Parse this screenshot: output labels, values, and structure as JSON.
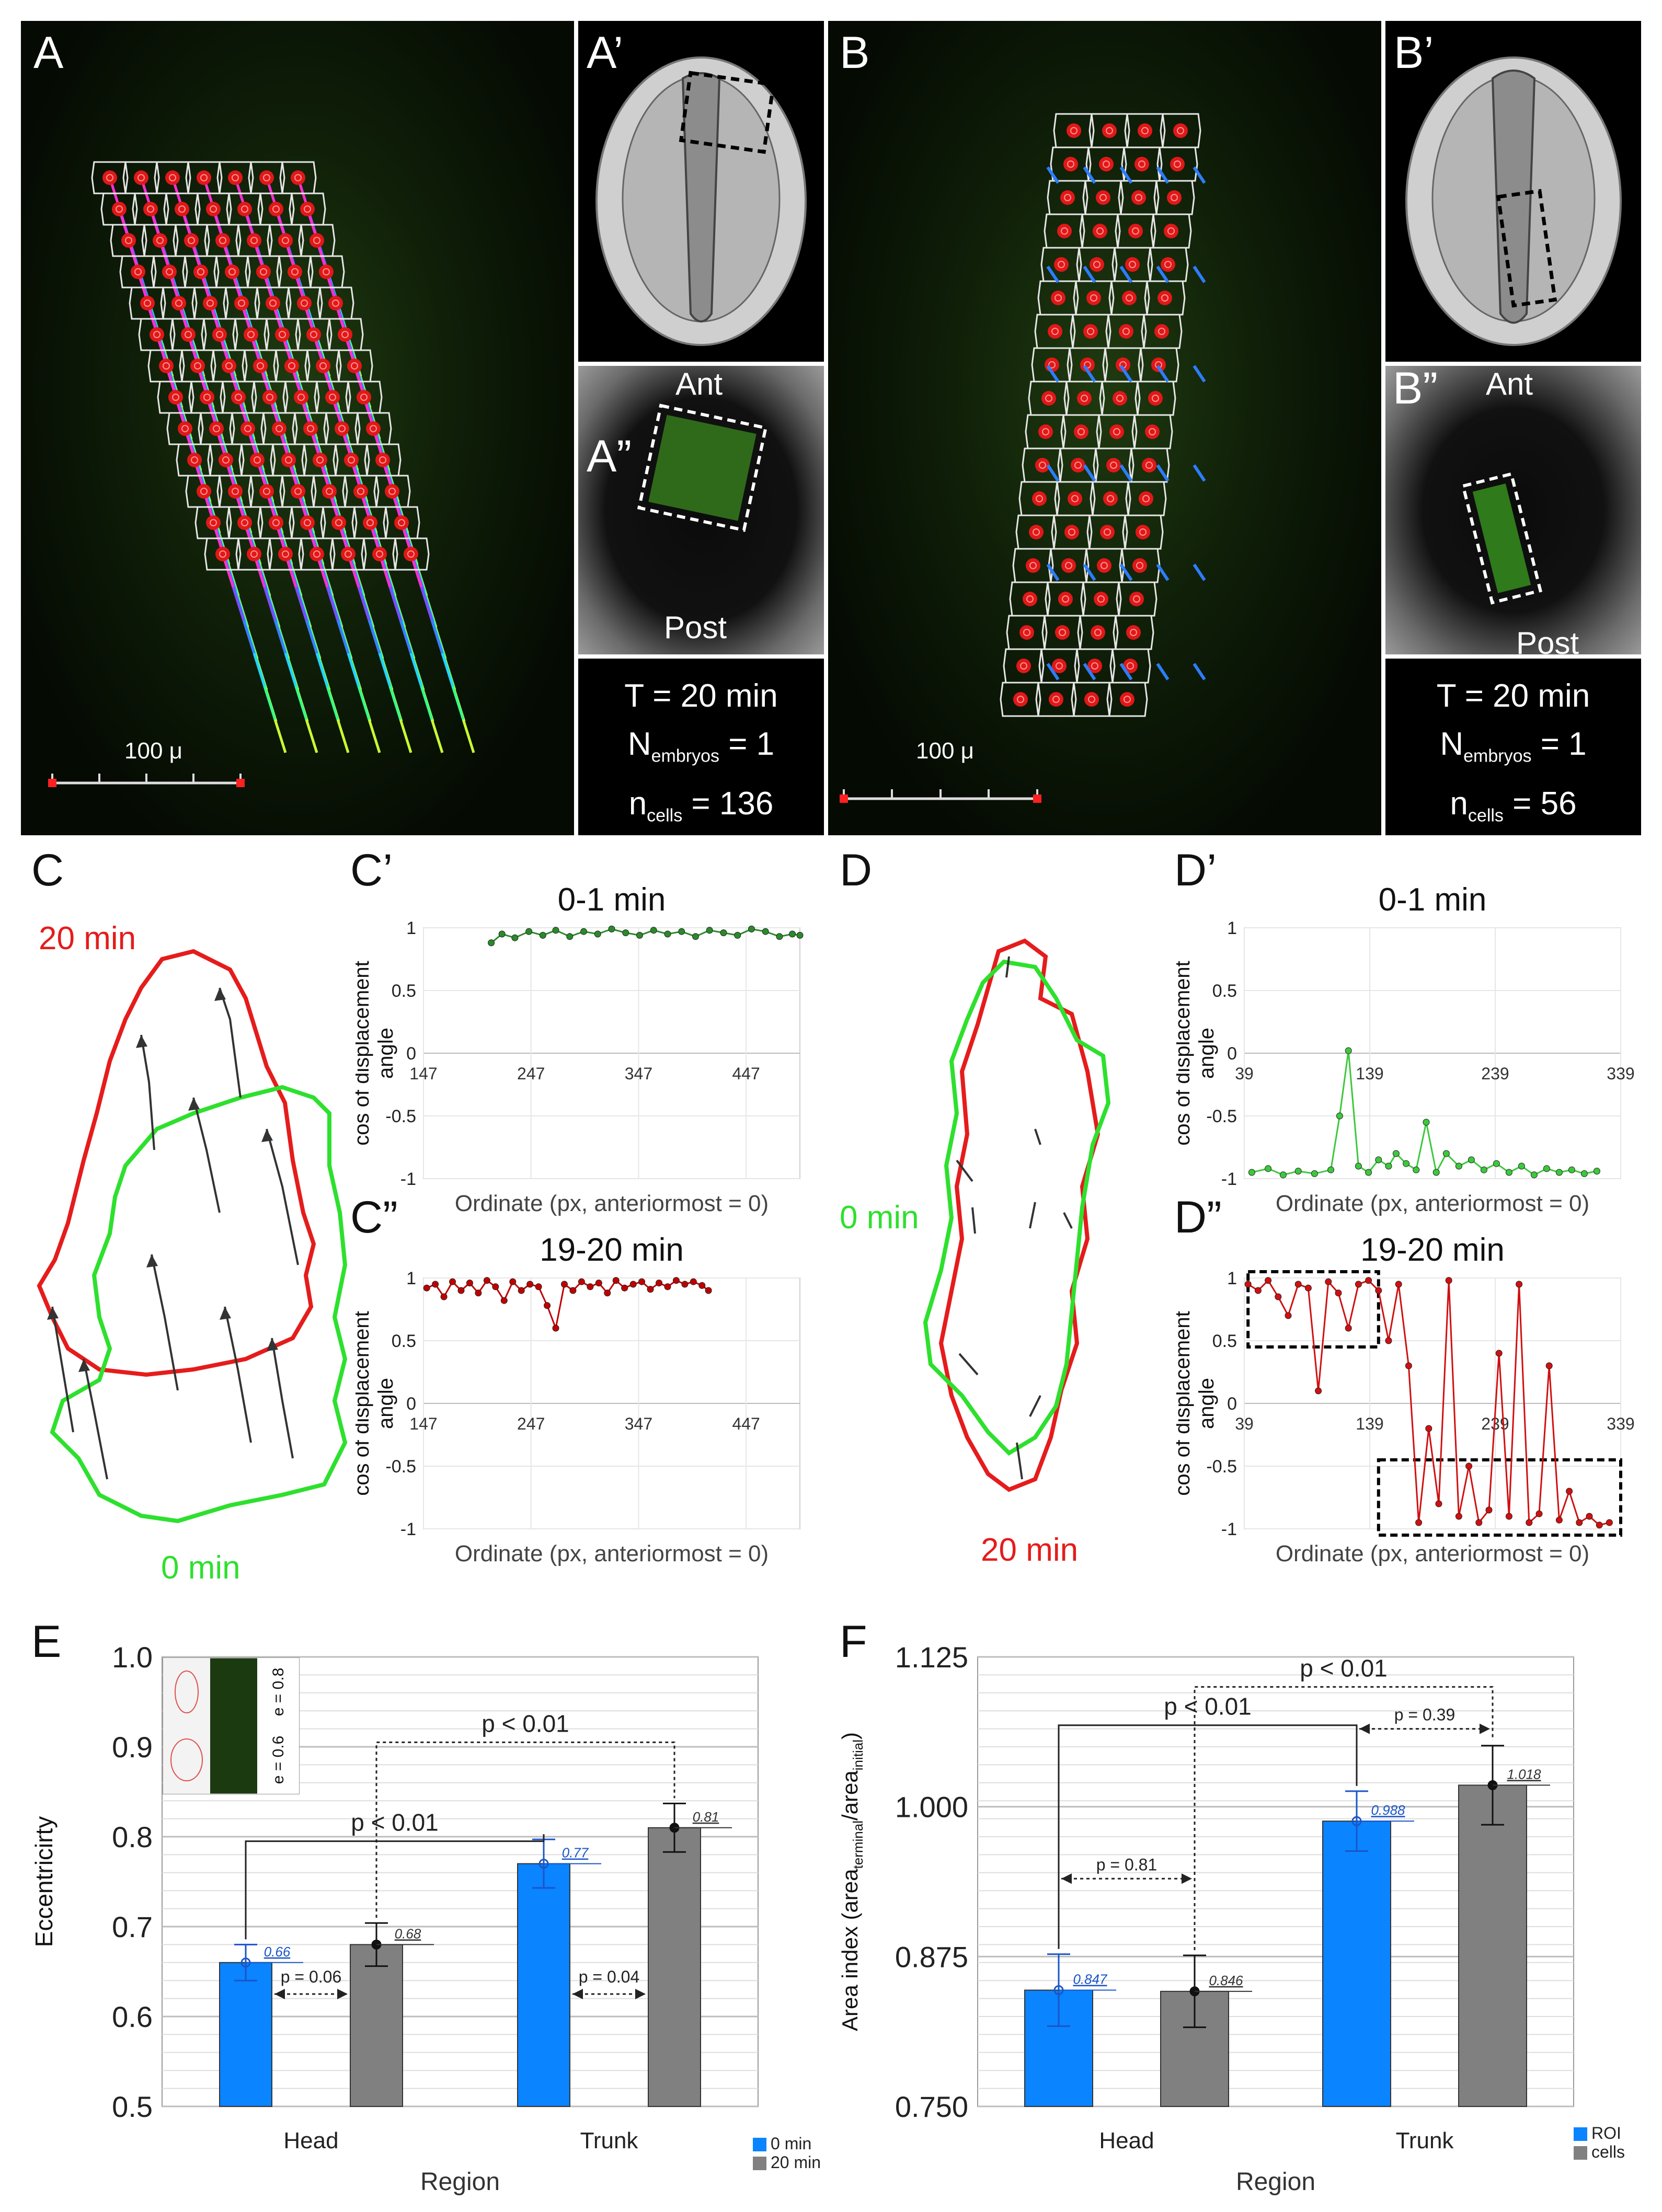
{
  "panels": {
    "A": {
      "letter": "A",
      "scalebar": "100 μ"
    },
    "A1": {
      "letter": "A’"
    },
    "A2": {
      "letter": "A”",
      "ant": "Ant",
      "post": "Post"
    },
    "Ainfo": {
      "time": "T = 20 min",
      "n_label": "N",
      "n_sub": "embryos",
      "n_val": " = 1",
      "c_label": "n",
      "c_sub": "cells",
      "c_val": " = 136"
    },
    "B": {
      "letter": "B",
      "scalebar": "100 μ"
    },
    "B1": {
      "letter": "B’"
    },
    "B2": {
      "letter": "B”",
      "ant": "Ant",
      "post": "Post"
    },
    "Binfo": {
      "time": "T = 20 min",
      "n_label": "N",
      "n_sub": "embryos",
      "n_val": " = 1",
      "c_label": "n",
      "c_sub": "cells",
      "c_val": " = 56"
    },
    "C": {
      "letter": "C",
      "t20": "20 min",
      "t0": "0 min",
      "color_20": "#e51c1c",
      "color_0": "#2ee02e"
    },
    "D": {
      "letter": "D",
      "t20": "20 min",
      "t0": "0 min"
    },
    "E": {
      "letter": "E"
    },
    "F": {
      "letter": "F"
    }
  },
  "chart_data": [
    {
      "id": "C1",
      "letter": "C’",
      "type": "scatter",
      "title": "0-1 min",
      "ylabel": "cos of displacement angle",
      "xlabel": "Ordinate (px, anteriormost = 0)",
      "xticks": [
        "147",
        "247",
        "347",
        "447"
      ],
      "yticks": [
        "1",
        "0.5",
        "0",
        "-0.5",
        "-1"
      ],
      "xlim": [
        147,
        497
      ],
      "ylim": [
        -1,
        1
      ],
      "color": "#2a8a2a",
      "series": [
        {
          "values_desc": "~0.92-1.0 for ordinate 210-497",
          "x": [
            210,
            220,
            232,
            245,
            258,
            270,
            283,
            296,
            309,
            322,
            335,
            348,
            361,
            374,
            387,
            400,
            413,
            426,
            439,
            452,
            465,
            478,
            490,
            497
          ],
          "y": [
            0.88,
            0.95,
            0.92,
            0.97,
            0.94,
            0.98,
            0.93,
            0.97,
            0.95,
            0.99,
            0.96,
            0.94,
            0.98,
            0.95,
            0.97,
            0.93,
            0.98,
            0.96,
            0.94,
            0.99,
            0.97,
            0.93,
            0.95,
            0.94
          ]
        }
      ]
    },
    {
      "id": "C2",
      "letter": "C”",
      "type": "scatter",
      "title": "19-20 min",
      "ylabel": "cos of displacement angle",
      "xlabel": "Ordinate (px, anteriormost = 0)",
      "xticks": [
        "147",
        "247",
        "347",
        "447"
      ],
      "yticks": [
        "1",
        "0.5",
        "0",
        "-0.5",
        "-1"
      ],
      "xlim": [
        147,
        497
      ],
      "ylim": [
        -1,
        1
      ],
      "color": "#c00000",
      "series": [
        {
          "x": [
            150,
            158,
            166,
            174,
            182,
            190,
            198,
            206,
            214,
            222,
            230,
            238,
            246,
            254,
            262,
            270,
            278,
            286,
            294,
            302,
            310,
            318,
            326,
            334,
            342,
            350,
            358,
            366,
            374,
            382,
            390,
            398,
            406,
            412
          ],
          "y": [
            0.92,
            0.95,
            0.85,
            0.97,
            0.9,
            0.96,
            0.88,
            0.98,
            0.93,
            0.82,
            0.97,
            0.9,
            0.95,
            0.93,
            0.78,
            0.6,
            0.95,
            0.9,
            0.97,
            0.93,
            0.96,
            0.88,
            0.98,
            0.92,
            0.95,
            0.97,
            0.91,
            0.96,
            0.93,
            0.98,
            0.95,
            0.97,
            0.94,
            0.9
          ]
        }
      ]
    },
    {
      "id": "D1",
      "letter": "D’",
      "type": "line",
      "title": "0-1 min",
      "ylabel": "cos of displacement angle",
      "xlabel": "Ordinate (px, anteriormost = 0)",
      "xticks": [
        "39",
        "139",
        "239",
        "339"
      ],
      "yticks": [
        "1",
        "0.5",
        "0",
        "-0.5",
        "-1"
      ],
      "xlim": [
        39,
        339
      ],
      "ylim": [
        -1,
        1
      ],
      "color": "#3cc83c",
      "series": [
        {
          "x": [
            45,
            58,
            70,
            82,
            95,
            108,
            115,
            122,
            130,
            138,
            146,
            154,
            160,
            168,
            176,
            184,
            192,
            200,
            210,
            220,
            230,
            240,
            250,
            260,
            270,
            280,
            290,
            300,
            310,
            320
          ],
          "y": [
            -0.95,
            -0.92,
            -0.97,
            -0.94,
            -0.96,
            -0.93,
            -0.5,
            0.02,
            -0.9,
            -0.95,
            -0.85,
            -0.9,
            -0.8,
            -0.88,
            -0.93,
            -0.55,
            -0.95,
            -0.8,
            -0.9,
            -0.85,
            -0.93,
            -0.88,
            -0.95,
            -0.9,
            -0.97,
            -0.92,
            -0.95,
            -0.93,
            -0.96,
            -0.94
          ]
        }
      ]
    },
    {
      "id": "D2",
      "letter": "D”",
      "type": "line",
      "title": "19-20 min",
      "ylabel": "cos of displacement angle",
      "xlabel": "Ordinate (px, anteriormost = 0)",
      "xticks": [
        "39",
        "139",
        "239",
        "339"
      ],
      "yticks": [
        "1",
        "0.5",
        "0",
        "-0.5",
        "-1"
      ],
      "xlim": [
        39,
        339
      ],
      "ylim": [
        -1,
        1
      ],
      "color": "#d01010",
      "series": [
        {
          "x": [
            42,
            50,
            58,
            66,
            74,
            82,
            90,
            98,
            106,
            114,
            122,
            130,
            138,
            146,
            154,
            162,
            170,
            178,
            186,
            194,
            202,
            210,
            218,
            226,
            234,
            242,
            250,
            258,
            266,
            274,
            282,
            290,
            298,
            306,
            314,
            322,
            330
          ],
          "y": [
            0.95,
            0.9,
            0.98,
            0.85,
            0.7,
            0.95,
            0.92,
            0.1,
            0.97,
            0.88,
            0.6,
            0.95,
            0.98,
            0.9,
            0.5,
            0.95,
            0.3,
            -0.95,
            -0.2,
            -0.8,
            0.98,
            -0.9,
            -0.5,
            -0.95,
            -0.85,
            0.4,
            -0.9,
            0.95,
            -0.95,
            -0.88,
            0.3,
            -0.93,
            -0.7,
            -0.95,
            -0.9,
            -0.97,
            -0.95
          ]
        }
      ],
      "boxes": [
        {
          "x": [
            42,
            146
          ],
          "y": [
            0.45,
            1.05
          ]
        },
        {
          "x": [
            146,
            339
          ],
          "y": [
            -1.05,
            -0.45
          ]
        }
      ]
    },
    {
      "id": "E",
      "type": "bar",
      "ylabel": "Eccentricirty",
      "xlabel": "Region",
      "categories": [
        "Head",
        "Trunk"
      ],
      "ylim": [
        0.5,
        1.0
      ],
      "yticks": [
        "0.5",
        "0.6",
        "0.7",
        "0.8",
        "0.9",
        "1.0"
      ],
      "series": [
        {
          "name": "0 min",
          "values": [
            0.66,
            0.77
          ],
          "err": [
            0.02,
            0.027
          ],
          "color": "#0a84ff"
        },
        {
          "name": "20 min",
          "values": [
            0.68,
            0.81
          ],
          "err": [
            0.024,
            0.027
          ],
          "color": "#808080"
        }
      ],
      "value_labels": [
        "0.66",
        "0.68",
        "0.77",
        "0.81"
      ],
      "annotations": [
        "p < 0.01",
        "p < 0.01",
        "p = 0.06",
        "p = 0.04"
      ],
      "inset": {
        "e1": "e = 0.6",
        "e2": "e = 0.8"
      }
    },
    {
      "id": "F",
      "type": "bar",
      "ylabel": "Area index (area",
      "ylabel_sub1": "terminal",
      "ylabel_mid": "/area",
      "ylabel_sub2": "initial",
      "ylabel_end": ")",
      "xlabel": "Region",
      "categories": [
        "Head",
        "Trunk"
      ],
      "ylim": [
        0.75,
        1.125
      ],
      "yticks": [
        "0.750",
        "0.875",
        "1.000",
        "1.125"
      ],
      "series": [
        {
          "name": "ROI",
          "values": [
            0.847,
            0.988
          ],
          "err": [
            0.03,
            0.025
          ],
          "color": "#0a84ff"
        },
        {
          "name": "cells",
          "values": [
            0.846,
            1.018
          ],
          "err": [
            0.03,
            0.033
          ],
          "color": "#808080"
        }
      ],
      "value_labels": [
        "0.847",
        "0.846",
        "0.988",
        "1.018"
      ],
      "annotations": [
        "p < 0.01",
        "p < 0.01",
        "p = 0.81",
        "p = 0.39"
      ]
    }
  ]
}
